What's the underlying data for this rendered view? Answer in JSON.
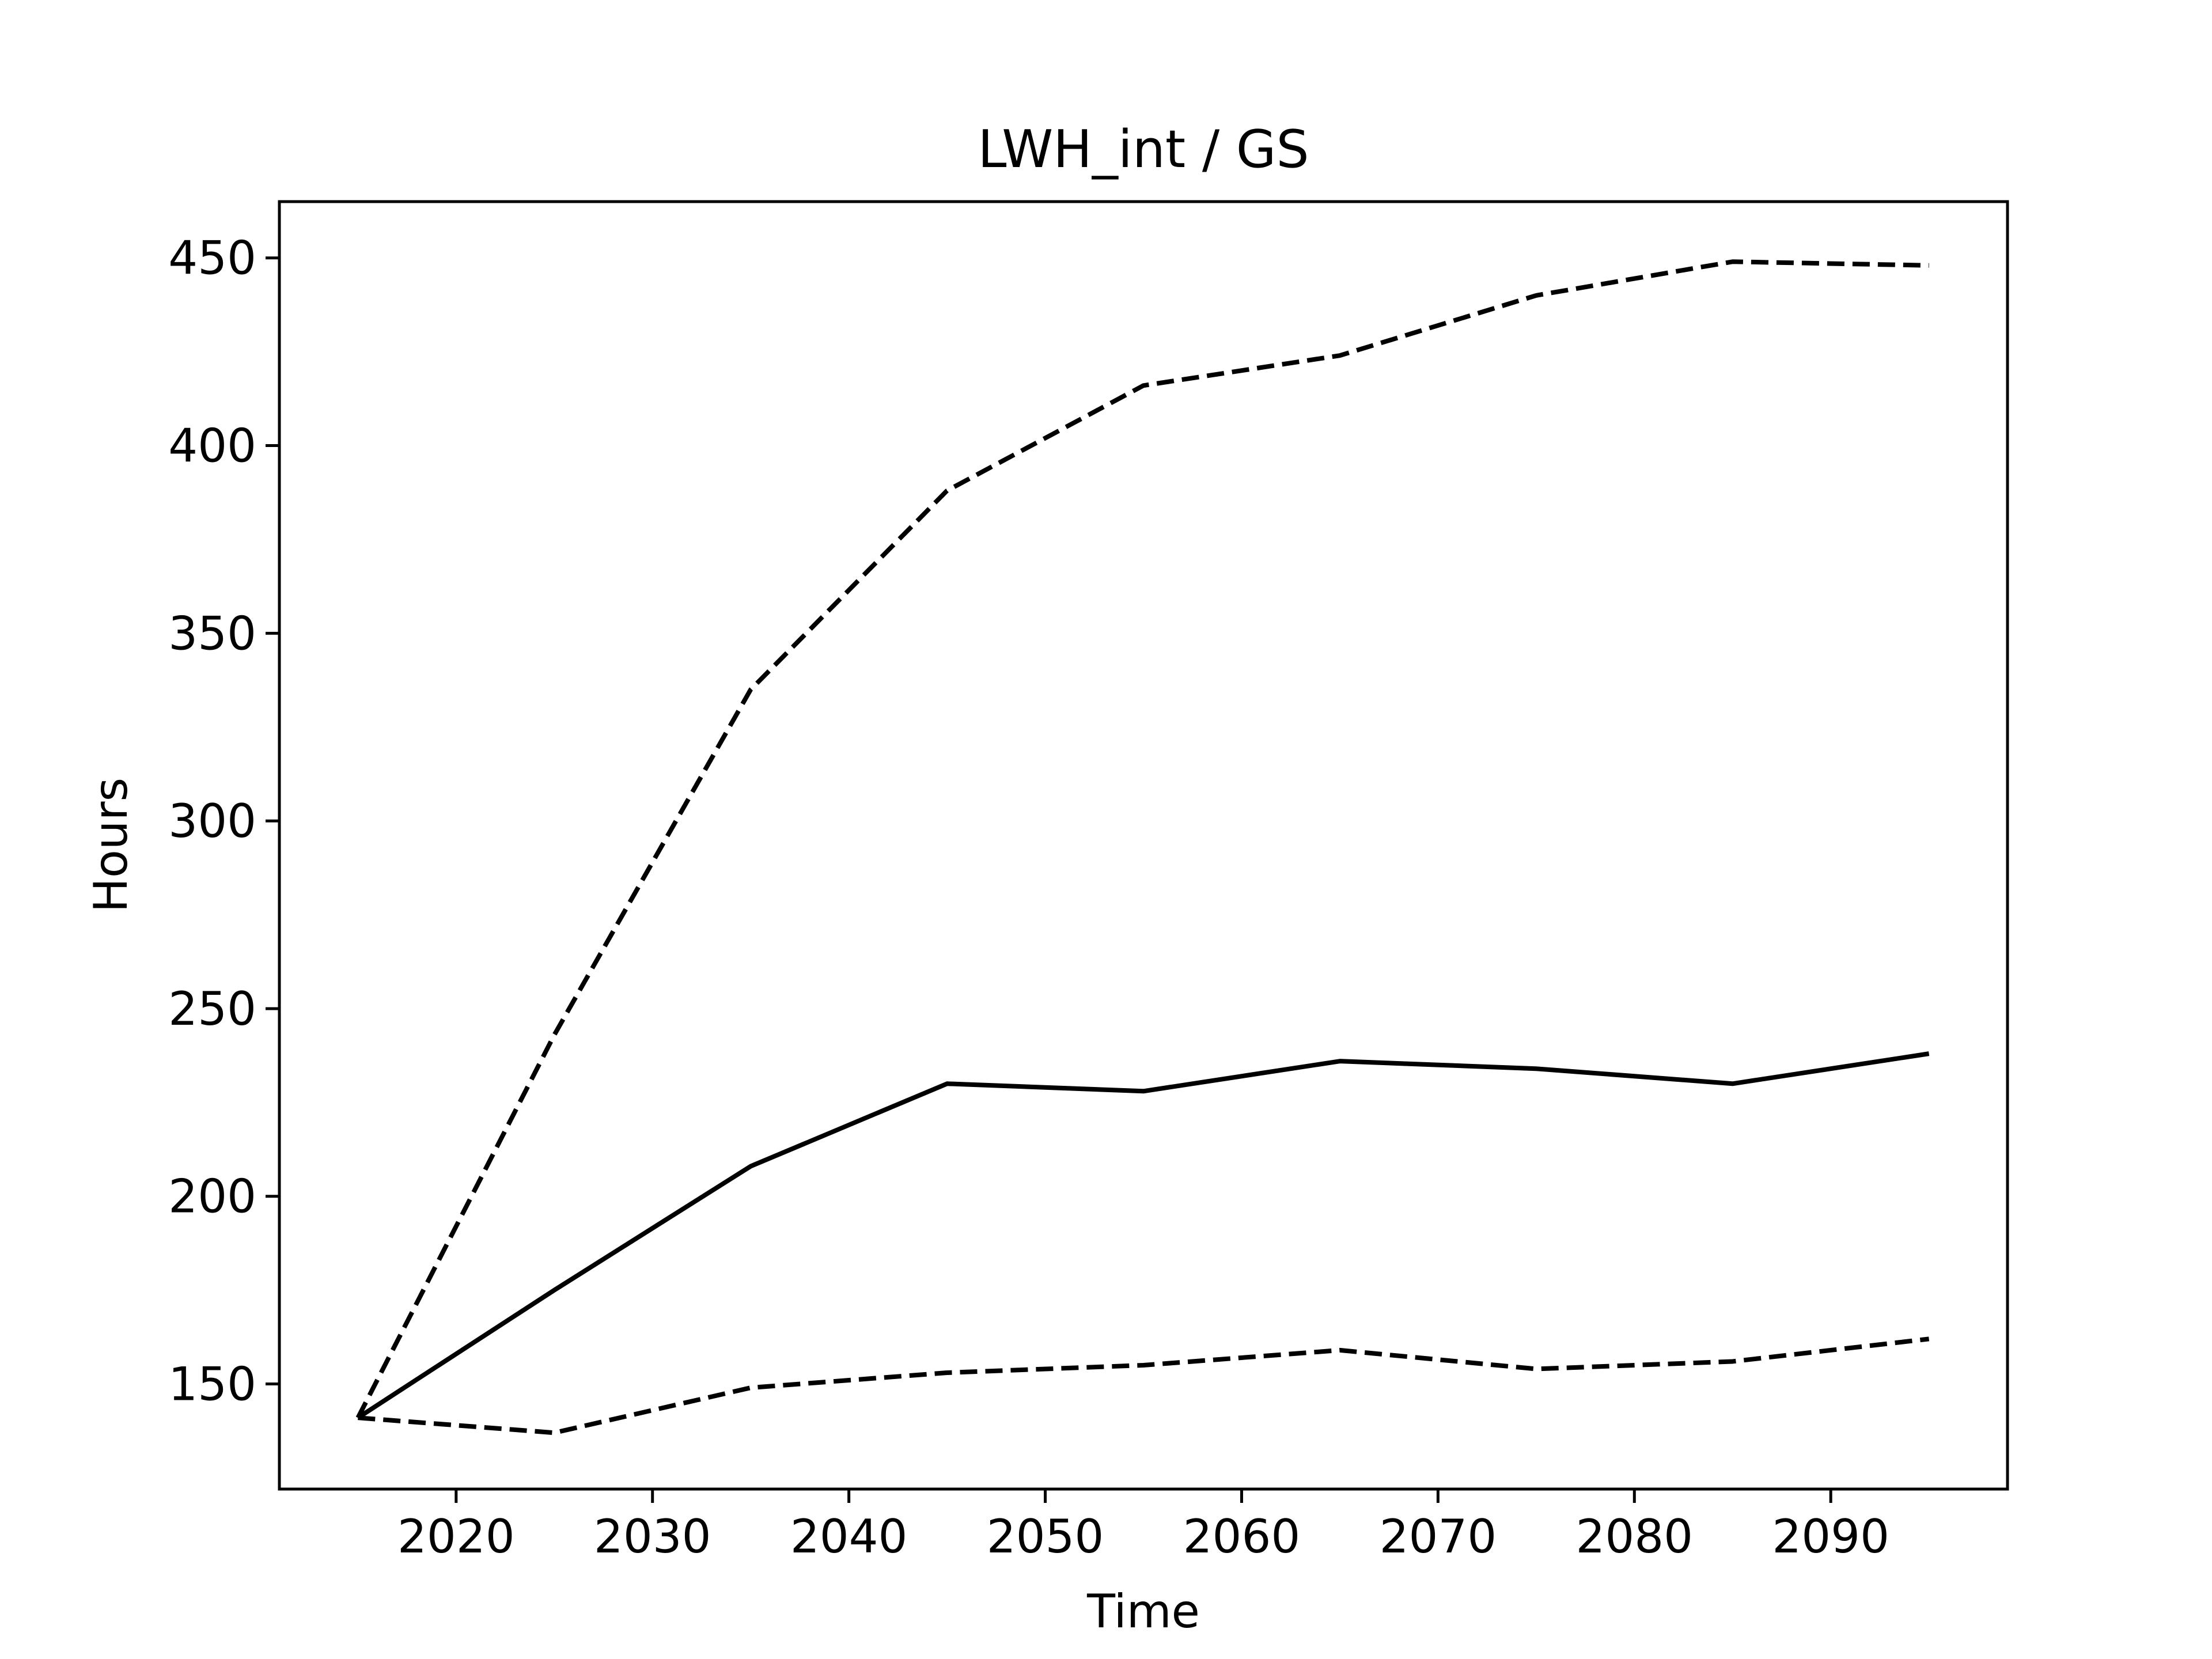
{
  "chart_data": {
    "type": "line",
    "title": "LWH_int / GS",
    "xlabel": "Time",
    "ylabel": "Hours",
    "xlim": [
      2011,
      2099
    ],
    "ylim": [
      122,
      465
    ],
    "xticks": [
      2020,
      2030,
      2040,
      2050,
      2060,
      2070,
      2080,
      2090
    ],
    "yticks": [
      150,
      200,
      250,
      300,
      350,
      400,
      450
    ],
    "grid": false,
    "legend": "none",
    "x": [
      2015,
      2025,
      2035,
      2045,
      2055,
      2065,
      2075,
      2085,
      2095
    ],
    "series": [
      {
        "style": "solid",
        "color": "#000000",
        "values": [
          141,
          175,
          208,
          230,
          228,
          236,
          234,
          230,
          238
        ]
      },
      {
        "style": "dashed",
        "color": "#000000",
        "values": [
          141,
          243,
          335,
          388,
          416,
          424,
          440,
          449,
          448
        ]
      },
      {
        "style": "dashed",
        "color": "#000000",
        "values": [
          141,
          137,
          149,
          153,
          155,
          159,
          154,
          156,
          162
        ]
      }
    ]
  }
}
